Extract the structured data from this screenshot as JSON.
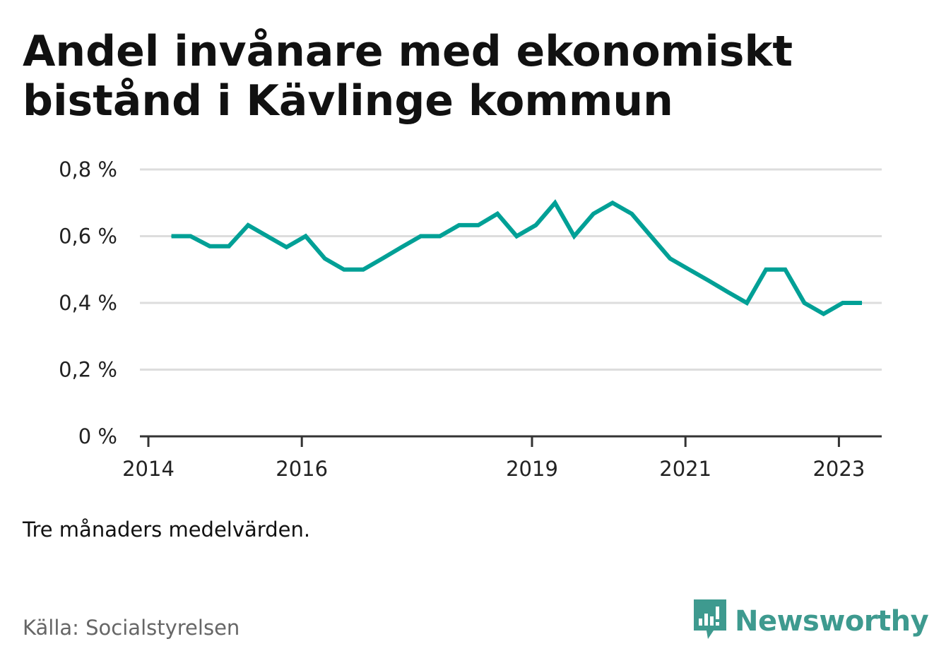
{
  "title": "Andel invånare med ekonomiskt bistånd i Kävlinge kommun",
  "note": "Tre månaders medelvärden.",
  "source": "Källa: Socialstyrelsen",
  "brand": {
    "name": "Newsworthy",
    "icon": "bar-chart-speech-bubble-icon",
    "color": "#3e9a8f"
  },
  "chart_data": {
    "type": "line",
    "title": "Andel invånare med ekonomiskt bistånd i Kävlinge kommun",
    "xlabel": "",
    "ylabel": "",
    "ylim": [
      0,
      0.8
    ],
    "y_ticks": [
      {
        "value": 0,
        "label": "0 %"
      },
      {
        "value": 0.2,
        "label": "0,2 %"
      },
      {
        "value": 0.4,
        "label": "0,4 %"
      },
      {
        "value": 0.6,
        "label": "0,6 %"
      },
      {
        "value": 0.8,
        "label": "0,8 %"
      }
    ],
    "xlim": [
      2014,
      2024
    ],
    "x_ticks": [
      {
        "value": 2014,
        "label": "2014"
      },
      {
        "value": 2016,
        "label": "2016"
      },
      {
        "value": 2019,
        "label": "2019"
      },
      {
        "value": 2021,
        "label": "2021"
      },
      {
        "value": 2023,
        "label": "2023"
      }
    ],
    "grid": true,
    "line_color": "#00a096",
    "series": [
      {
        "x": [
          2014.3,
          2014.55,
          2014.8,
          2015.05,
          2015.3,
          2015.55,
          2015.8,
          2016.05,
          2016.3,
          2016.55,
          2016.8,
          2017.05,
          2017.3,
          2017.55,
          2017.8,
          2018.05,
          2018.3,
          2018.55,
          2018.8,
          2019.05,
          2019.3,
          2019.55,
          2019.8,
          2020.05,
          2020.3,
          2020.55,
          2020.8,
          2021.05,
          2021.3,
          2021.55,
          2021.8,
          2022.05,
          2022.3,
          2022.55,
          2022.8,
          2023.05,
          2023.3
        ],
        "y": [
          0.6,
          0.6,
          0.57,
          0.57,
          0.633,
          0.6,
          0.567,
          0.6,
          0.533,
          0.5,
          0.5,
          0.533,
          0.567,
          0.6,
          0.6,
          0.633,
          0.633,
          0.667,
          0.6,
          0.633,
          0.7,
          0.6,
          0.667,
          0.7,
          0.667,
          0.6,
          0.533,
          0.5,
          0.467,
          0.433,
          0.4,
          0.5,
          0.5,
          0.4,
          0.367,
          0.4,
          0.4
        ]
      }
    ]
  }
}
